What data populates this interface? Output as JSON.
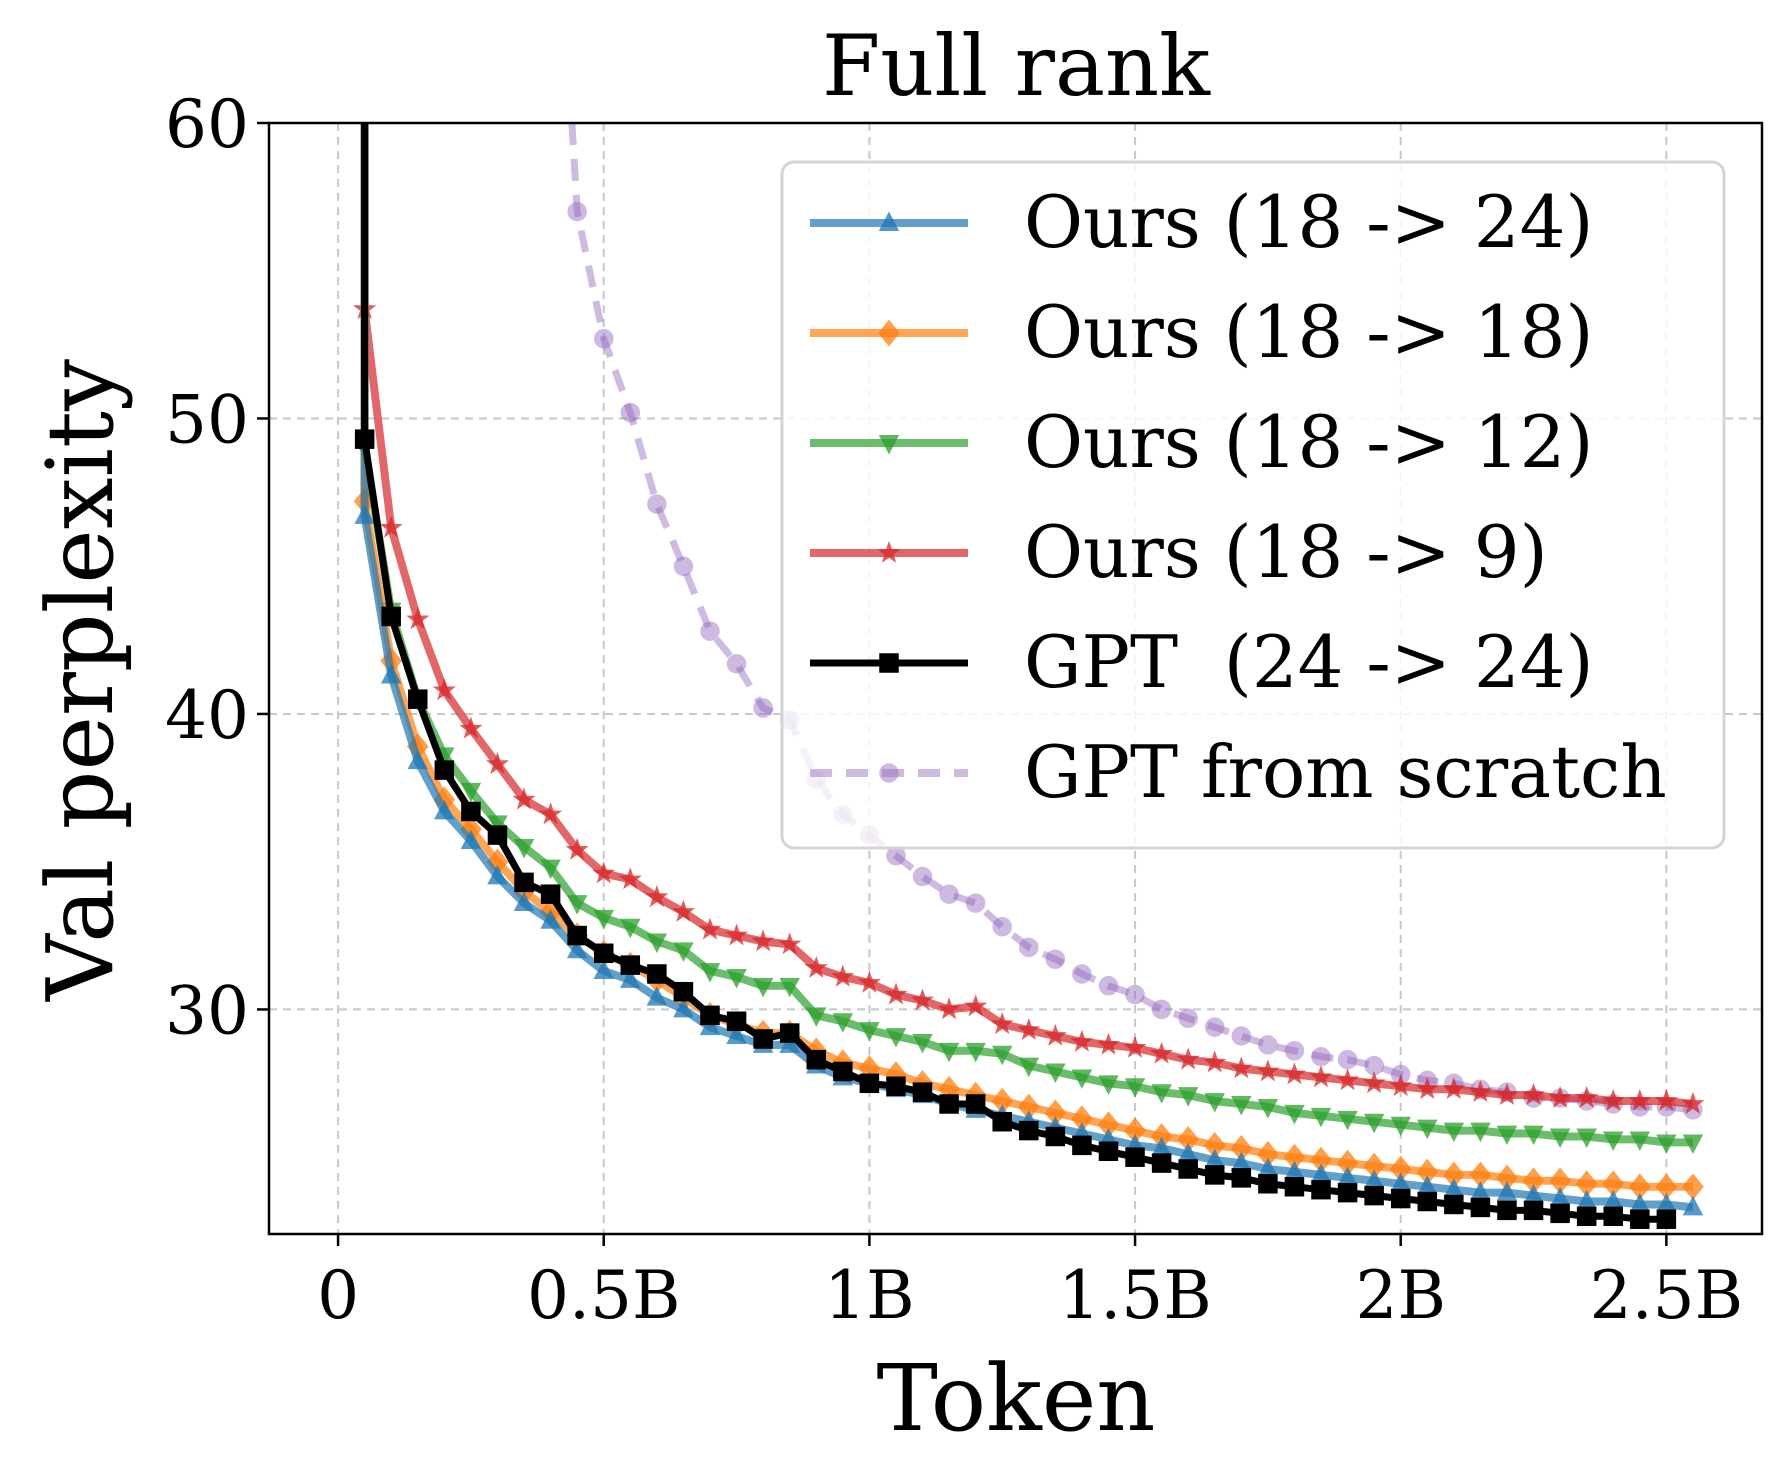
{
  "chart_data": {
    "type": "line",
    "title": "Full rank",
    "xlabel": "Token",
    "ylabel": "Val perplexity",
    "xlim": [
      -0.13,
      2.68
    ],
    "ylim": [
      22.4,
      60
    ],
    "xticks": [
      {
        "value": 0,
        "label": "0"
      },
      {
        "value": 0.5,
        "label": "0.5B"
      },
      {
        "value": 1.0,
        "label": "1B"
      },
      {
        "value": 1.5,
        "label": "1.5B"
      },
      {
        "value": 2.0,
        "label": "2B"
      },
      {
        "value": 2.5,
        "label": "2.5B"
      }
    ],
    "yticks": [
      {
        "value": 30,
        "label": "30"
      },
      {
        "value": 40,
        "label": "40"
      },
      {
        "value": 50,
        "label": "50"
      },
      {
        "value": 60,
        "label": "60"
      }
    ],
    "grid": true,
    "legend_position": "top-right",
    "x_unit": "billions of tokens",
    "series": [
      {
        "name": "Ours (18 -> 24)",
        "color": "#1f77b4",
        "marker": "triangle-up",
        "dashed": false,
        "x": [
          0.05,
          0.1,
          0.15,
          0.2,
          0.25,
          0.3,
          0.35,
          0.4,
          0.45,
          0.5,
          0.55,
          0.6,
          0.65,
          0.7,
          0.75,
          0.8,
          0.85,
          0.9,
          0.95,
          1.0,
          1.05,
          1.1,
          1.15,
          1.2,
          1.25,
          1.3,
          1.35,
          1.4,
          1.45,
          1.5,
          1.55,
          1.6,
          1.65,
          1.7,
          1.75,
          1.8,
          1.85,
          1.9,
          1.95,
          2.0,
          2.05,
          2.1,
          2.15,
          2.2,
          2.25,
          2.3,
          2.35,
          2.4,
          2.45,
          2.5,
          2.55
        ],
        "y": [
          46.7,
          41.3,
          38.4,
          36.7,
          35.7,
          34.5,
          33.6,
          33.0,
          32.0,
          31.3,
          31.0,
          30.4,
          30.0,
          29.4,
          29.1,
          28.8,
          28.8,
          28.1,
          27.7,
          27.5,
          27.3,
          27.1,
          26.8,
          26.6,
          26.4,
          26.2,
          26.0,
          25.8,
          25.6,
          25.4,
          25.3,
          25.1,
          24.9,
          24.8,
          24.6,
          24.5,
          24.4,
          24.3,
          24.2,
          24.1,
          24.0,
          23.9,
          23.8,
          23.8,
          23.7,
          23.6,
          23.5,
          23.5,
          23.4,
          23.4,
          23.3
        ]
      },
      {
        "name": "Ours (18 -> 18)",
        "color": "#ff7f0e",
        "marker": "diamond",
        "dashed": false,
        "x": [
          0.05,
          0.1,
          0.15,
          0.2,
          0.25,
          0.3,
          0.35,
          0.4,
          0.45,
          0.5,
          0.55,
          0.6,
          0.65,
          0.7,
          0.75,
          0.8,
          0.85,
          0.9,
          0.95,
          1.0,
          1.05,
          1.1,
          1.15,
          1.2,
          1.25,
          1.3,
          1.35,
          1.4,
          1.45,
          1.5,
          1.55,
          1.6,
          1.65,
          1.7,
          1.75,
          1.8,
          1.85,
          1.9,
          1.95,
          2.0,
          2.05,
          2.1,
          2.15,
          2.2,
          2.25,
          2.3,
          2.35,
          2.4,
          2.45,
          2.5,
          2.55
        ],
        "y": [
          47.2,
          41.8,
          38.9,
          37.1,
          36.1,
          35.0,
          34.0,
          33.3,
          32.5,
          31.9,
          31.5,
          31.0,
          30.4,
          29.8,
          29.5,
          29.2,
          29.2,
          28.6,
          28.2,
          28.0,
          27.8,
          27.5,
          27.3,
          27.1,
          26.9,
          26.7,
          26.5,
          26.3,
          26.1,
          25.9,
          25.7,
          25.6,
          25.4,
          25.3,
          25.1,
          25.0,
          24.9,
          24.8,
          24.7,
          24.6,
          24.5,
          24.4,
          24.4,
          24.3,
          24.2,
          24.2,
          24.1,
          24.1,
          24.0,
          24.0,
          24.0
        ]
      },
      {
        "name": "Ours (18 -> 12)",
        "color": "#2ca02c",
        "marker": "triangle-down",
        "dashed": false,
        "x": [
          0.05,
          0.1,
          0.15,
          0.2,
          0.25,
          0.3,
          0.35,
          0.4,
          0.45,
          0.5,
          0.55,
          0.6,
          0.65,
          0.7,
          0.75,
          0.8,
          0.85,
          0.9,
          0.95,
          1.0,
          1.05,
          1.1,
          1.15,
          1.2,
          1.25,
          1.3,
          1.35,
          1.4,
          1.45,
          1.5,
          1.55,
          1.6,
          1.65,
          1.7,
          1.75,
          1.8,
          1.85,
          1.9,
          1.95,
          2.0,
          2.05,
          2.1,
          2.15,
          2.2,
          2.25,
          2.3,
          2.35,
          2.4,
          2.45,
          2.5,
          2.55
        ],
        "y": [
          49.0,
          43.5,
          40.5,
          38.6,
          37.4,
          36.3,
          35.5,
          34.8,
          33.6,
          33.1,
          32.8,
          32.3,
          32.0,
          31.3,
          31.1,
          30.8,
          30.8,
          29.8,
          29.6,
          29.3,
          29.1,
          28.9,
          28.6,
          28.6,
          28.5,
          28.1,
          27.9,
          27.7,
          27.5,
          27.4,
          27.2,
          27.1,
          26.9,
          26.8,
          26.7,
          26.5,
          26.4,
          26.3,
          26.2,
          26.1,
          26.0,
          25.9,
          25.9,
          25.8,
          25.8,
          25.7,
          25.7,
          25.6,
          25.6,
          25.5,
          25.5
        ]
      },
      {
        "name": "Ours (18 -> 9)",
        "color": "#d62728",
        "marker": "star",
        "dashed": false,
        "x": [
          0.05,
          0.1,
          0.15,
          0.2,
          0.25,
          0.3,
          0.35,
          0.4,
          0.45,
          0.5,
          0.55,
          0.6,
          0.65,
          0.7,
          0.75,
          0.8,
          0.85,
          0.9,
          0.95,
          1.0,
          1.05,
          1.1,
          1.15,
          1.2,
          1.25,
          1.3,
          1.35,
          1.4,
          1.45,
          1.5,
          1.55,
          1.6,
          1.65,
          1.7,
          1.75,
          1.8,
          1.85,
          1.9,
          1.95,
          2.0,
          2.05,
          2.1,
          2.15,
          2.2,
          2.25,
          2.3,
          2.35,
          2.4,
          2.45,
          2.5,
          2.55
        ],
        "y": [
          53.7,
          46.3,
          43.2,
          40.8,
          39.5,
          38.3,
          37.1,
          36.6,
          35.4,
          34.6,
          34.4,
          33.8,
          33.3,
          32.7,
          32.5,
          32.3,
          32.2,
          31.4,
          31.1,
          30.9,
          30.5,
          30.3,
          30.0,
          30.1,
          29.5,
          29.3,
          29.1,
          28.9,
          28.8,
          28.7,
          28.5,
          28.3,
          28.2,
          28.0,
          27.9,
          27.8,
          27.7,
          27.6,
          27.5,
          27.4,
          27.3,
          27.3,
          27.2,
          27.1,
          27.1,
          27.0,
          27.0,
          26.9,
          26.9,
          26.9,
          26.8
        ]
      },
      {
        "name": "GPT  (24 -> 24)",
        "color": "#000000",
        "marker": "square",
        "dashed": false,
        "x": [
          0.05,
          0.1,
          0.15,
          0.2,
          0.25,
          0.3,
          0.35,
          0.4,
          0.45,
          0.5,
          0.55,
          0.6,
          0.65,
          0.7,
          0.75,
          0.8,
          0.85,
          0.9,
          0.95,
          1.0,
          1.05,
          1.1,
          1.15,
          1.2,
          1.25,
          1.3,
          1.35,
          1.4,
          1.45,
          1.5,
          1.55,
          1.6,
          1.65,
          1.7,
          1.75,
          1.8,
          1.85,
          1.9,
          1.95,
          2.0,
          2.05,
          2.1,
          2.15,
          2.2,
          2.25,
          2.3,
          2.35,
          2.4,
          2.45,
          2.5
        ],
        "y": [
          49.3,
          43.3,
          40.5,
          38.1,
          36.7,
          35.9,
          34.3,
          33.9,
          32.5,
          31.9,
          31.5,
          31.2,
          30.6,
          29.8,
          29.6,
          29.0,
          29.2,
          28.3,
          27.9,
          27.5,
          27.4,
          27.2,
          26.8,
          26.8,
          26.2,
          25.9,
          25.7,
          25.4,
          25.2,
          25.0,
          24.8,
          24.6,
          24.4,
          24.3,
          24.1,
          24.0,
          23.9,
          23.8,
          23.7,
          23.6,
          23.5,
          23.4,
          23.3,
          23.2,
          23.2,
          23.1,
          23.0,
          23.0,
          22.9,
          22.9
        ]
      },
      {
        "name": "GPT from scratch",
        "color": "#9467bd",
        "marker": "circle",
        "dashed": true,
        "line_x": [
          0.45
        ],
        "line_y": [
          57.0
        ],
        "line_start": {
          "x": 0.44,
          "y": 60.0
        },
        "x": [
          0.45,
          0.5,
          0.55,
          0.6,
          0.65,
          0.7,
          0.75,
          0.8,
          0.85,
          0.9,
          0.95,
          1.0,
          1.05,
          1.1,
          1.15,
          1.2,
          1.25,
          1.3,
          1.35,
          1.4,
          1.45,
          1.5,
          1.55,
          1.6,
          1.65,
          1.7,
          1.75,
          1.8,
          1.85,
          1.9,
          1.95,
          2.0,
          2.05,
          2.1,
          2.15,
          2.2,
          2.25,
          2.3,
          2.35,
          2.4,
          2.45,
          2.5,
          2.55
        ],
        "y": [
          57.0,
          52.7,
          50.2,
          47.1,
          45.0,
          42.8,
          41.7,
          40.2,
          39.8,
          37.8,
          36.6,
          35.9,
          35.2,
          34.5,
          33.9,
          33.6,
          32.8,
          32.1,
          31.7,
          31.2,
          30.8,
          30.5,
          30.0,
          29.7,
          29.4,
          29.1,
          28.8,
          28.6,
          28.4,
          28.3,
          28.1,
          27.8,
          27.6,
          27.5,
          27.3,
          27.2,
          27.0,
          27.0,
          26.9,
          26.8,
          26.7,
          26.7,
          26.6
        ]
      }
    ],
    "initial_spike": {
      "x": 0.05,
      "y_top": 60.0
    }
  }
}
